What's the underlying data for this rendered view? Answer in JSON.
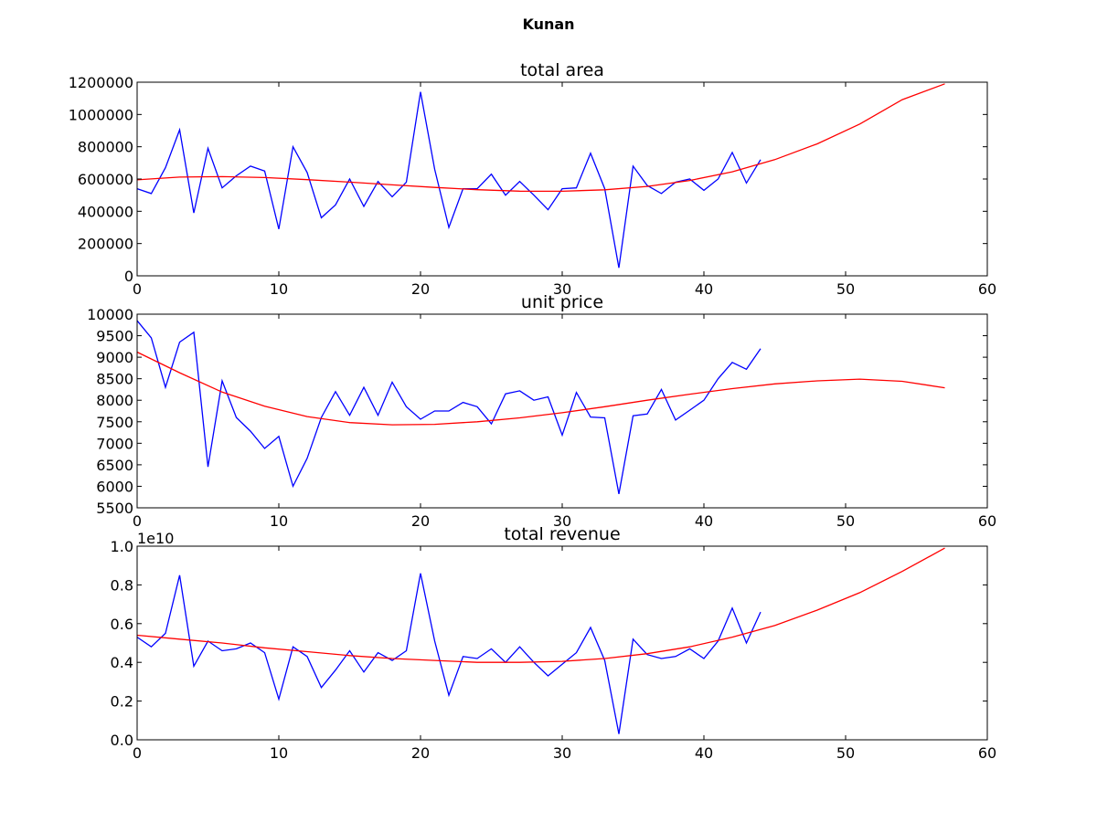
{
  "figure": {
    "suptitle": "Kunan",
    "background": "#ffffff"
  },
  "chart_data": [
    {
      "type": "line",
      "title": "total area",
      "xlabel": "",
      "ylabel": "",
      "xlim": [
        0,
        60
      ],
      "ylim": [
        0,
        1200000
      ],
      "xticks": [
        0,
        10,
        20,
        30,
        40,
        50,
        60
      ],
      "yticks": [
        0,
        200000,
        400000,
        600000,
        800000,
        1000000,
        1200000
      ],
      "ytick_labels": [
        "0",
        "200000",
        "400000",
        "600000",
        "800000",
        "1000000",
        "1200000"
      ],
      "offset_label": "",
      "grid": false,
      "series": [
        {
          "color": "#0000ff",
          "x": [
            0,
            1,
            2,
            3,
            4,
            5,
            6,
            7,
            8,
            9,
            10,
            11,
            12,
            13,
            14,
            15,
            16,
            17,
            18,
            19,
            20,
            21,
            22,
            23,
            24,
            25,
            26,
            27,
            28,
            29,
            30,
            31,
            32,
            33,
            34,
            35,
            36,
            37,
            38,
            39,
            40,
            41,
            42,
            43,
            44
          ],
          "values": [
            540000,
            510000,
            670000,
            905000,
            390000,
            790000,
            545000,
            620000,
            680000,
            650000,
            290000,
            800000,
            640000,
            360000,
            440000,
            600000,
            430000,
            585000,
            490000,
            580000,
            1140000,
            660000,
            300000,
            540000,
            540000,
            630000,
            500000,
            585000,
            500000,
            410000,
            540000,
            545000,
            760000,
            540000,
            50000,
            680000,
            560000,
            510000,
            580000,
            600000,
            530000,
            600000,
            765000,
            575000,
            720000
          ]
        },
        {
          "color": "#ff0000",
          "x": [
            0,
            3,
            6,
            9,
            12,
            15,
            18,
            21,
            24,
            27,
            30,
            33,
            36,
            39,
            42,
            45,
            48,
            51,
            54,
            57
          ],
          "values": [
            595000,
            612000,
            615000,
            609000,
            596000,
            581000,
            564000,
            548000,
            534000,
            525000,
            524000,
            533000,
            554000,
            591000,
            645000,
            720000,
            818000,
            941000,
            1092000,
            1190000
          ]
        }
      ]
    },
    {
      "type": "line",
      "title": "unit price",
      "xlabel": "",
      "ylabel": "",
      "xlim": [
        0,
        60
      ],
      "ylim": [
        5500,
        10000
      ],
      "xticks": [
        0,
        10,
        20,
        30,
        40,
        50,
        60
      ],
      "yticks": [
        5500,
        6000,
        6500,
        7000,
        7500,
        8000,
        8500,
        9000,
        9500,
        10000
      ],
      "ytick_labels": [
        "5500",
        "6000",
        "6500",
        "7000",
        "7500",
        "8000",
        "8500",
        "9000",
        "9500",
        "10000"
      ],
      "offset_label": "",
      "grid": false,
      "series": [
        {
          "color": "#0000ff",
          "x": [
            0,
            1,
            2,
            3,
            4,
            5,
            6,
            7,
            8,
            9,
            10,
            11,
            12,
            13,
            14,
            15,
            16,
            17,
            18,
            19,
            20,
            21,
            22,
            23,
            24,
            25,
            26,
            27,
            28,
            29,
            30,
            31,
            32,
            33,
            34,
            35,
            36,
            37,
            38,
            39,
            40,
            41,
            42,
            43,
            44
          ],
          "values": [
            9850,
            9450,
            8300,
            9350,
            9580,
            6450,
            8450,
            7600,
            7280,
            6880,
            7160,
            6000,
            6650,
            7600,
            8200,
            7650,
            8300,
            7650,
            8420,
            7850,
            7560,
            7750,
            7750,
            7950,
            7850,
            7450,
            8150,
            8220,
            8000,
            8080,
            7190,
            8180,
            7610,
            7590,
            5820,
            7640,
            7680,
            8250,
            7540,
            7770,
            8000,
            8500,
            8880,
            8720,
            9200
          ]
        },
        {
          "color": "#ff0000",
          "x": [
            0,
            3,
            6,
            9,
            12,
            15,
            18,
            21,
            24,
            27,
            30,
            33,
            36,
            39,
            42,
            45,
            48,
            51,
            54,
            57
          ],
          "values": [
            9120,
            8640,
            8190,
            7860,
            7620,
            7480,
            7430,
            7440,
            7500,
            7590,
            7710,
            7850,
            8000,
            8140,
            8270,
            8380,
            8450,
            8490,
            8440,
            8290
          ]
        }
      ]
    },
    {
      "type": "line",
      "title": "total revenue",
      "xlabel": "",
      "ylabel": "",
      "xlim": [
        0,
        60
      ],
      "ylim": [
        0,
        1.0
      ],
      "xticks": [
        0,
        10,
        20,
        30,
        40,
        50,
        60
      ],
      "yticks": [
        0.0,
        0.2,
        0.4,
        0.6,
        0.8,
        1.0
      ],
      "ytick_labels": [
        "0.0",
        "0.2",
        "0.4",
        "0.6",
        "0.8",
        "1.0"
      ],
      "offset_label": "1e10",
      "grid": false,
      "series": [
        {
          "color": "#0000ff",
          "x": [
            0,
            1,
            2,
            3,
            4,
            5,
            6,
            7,
            8,
            9,
            10,
            11,
            12,
            13,
            14,
            15,
            16,
            17,
            18,
            19,
            20,
            21,
            22,
            23,
            24,
            25,
            26,
            27,
            28,
            29,
            30,
            31,
            32,
            33,
            34,
            35,
            36,
            37,
            38,
            39,
            40,
            41,
            42,
            43,
            44
          ],
          "values": [
            0.53,
            0.48,
            0.55,
            0.85,
            0.38,
            0.51,
            0.46,
            0.47,
            0.5,
            0.45,
            0.21,
            0.48,
            0.43,
            0.27,
            0.36,
            0.46,
            0.35,
            0.45,
            0.41,
            0.46,
            0.86,
            0.51,
            0.23,
            0.43,
            0.42,
            0.47,
            0.4,
            0.48,
            0.4,
            0.33,
            0.39,
            0.45,
            0.58,
            0.41,
            0.03,
            0.52,
            0.44,
            0.42,
            0.43,
            0.47,
            0.42,
            0.51,
            0.68,
            0.5,
            0.66
          ]
        },
        {
          "color": "#ff0000",
          "x": [
            0,
            3,
            6,
            9,
            12,
            15,
            18,
            21,
            24,
            27,
            30,
            33,
            36,
            39,
            42,
            45,
            48,
            51,
            54,
            57
          ],
          "values": [
            0.54,
            0.52,
            0.5,
            0.475,
            0.455,
            0.435,
            0.42,
            0.41,
            0.4,
            0.4,
            0.405,
            0.42,
            0.445,
            0.48,
            0.53,
            0.59,
            0.67,
            0.76,
            0.87,
            0.99
          ]
        }
      ]
    }
  ]
}
